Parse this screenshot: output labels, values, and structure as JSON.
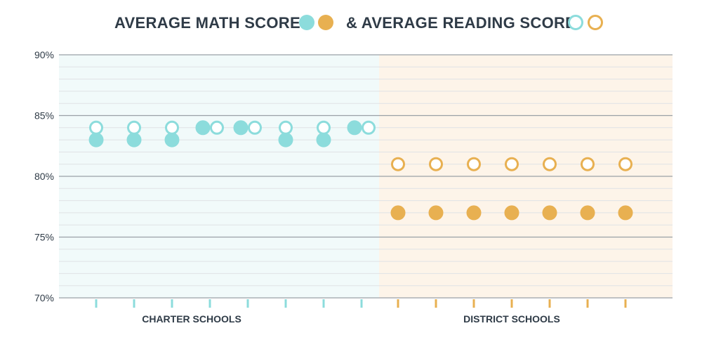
{
  "legend": {
    "math_label": "AVERAGE MATH SCORE",
    "reading_label": "& AVERAGE READING SCORE"
  },
  "colors": {
    "charter": "#8cdcdc",
    "district": "#e8b051",
    "charter_bg": "#f1fafa",
    "district_bg": "#fdf4e9",
    "text": "#2f3b47",
    "grid_major": "#9aa0a6",
    "grid_minor": "#dfe2e5"
  },
  "chart_data": {
    "type": "scatter",
    "y_ticks": [
      "90%",
      "85%",
      "80%",
      "75%",
      "70%"
    ],
    "ylim": [
      70,
      90
    ],
    "y_unit": "%",
    "grid": true,
    "groups": [
      {
        "label": "CHARTER SCHOOLS",
        "math": [
          83,
          83,
          83,
          84,
          84,
          83,
          83,
          84
        ],
        "reading": [
          84,
          84,
          84,
          84,
          84,
          84,
          84,
          84
        ]
      },
      {
        "label": "DISTRICT SCHOOLS",
        "math": [
          77,
          77,
          77,
          77,
          77,
          77,
          77
        ],
        "reading": [
          81,
          81,
          81,
          81,
          81,
          81,
          81
        ]
      }
    ]
  }
}
